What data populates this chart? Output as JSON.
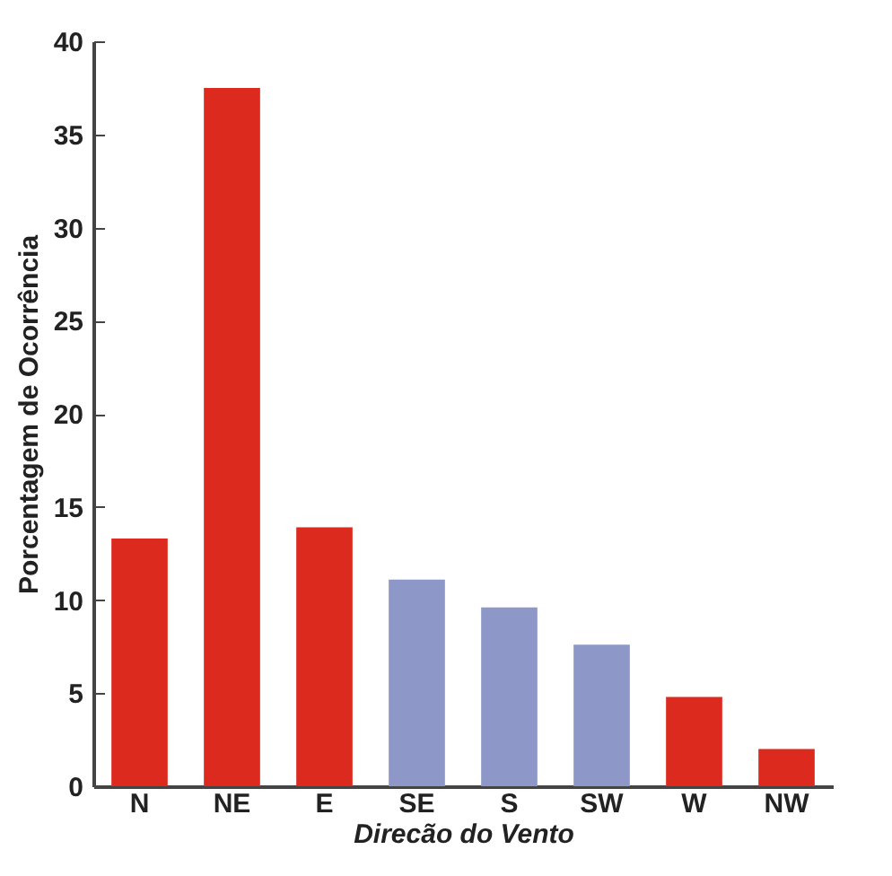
{
  "chart_data": {
    "type": "bar",
    "xlabel": "Direcão do Vento",
    "ylabel": "Porcentagem de Ocorrência",
    "categories": [
      "N",
      "NE",
      "E",
      "SE",
      "S",
      "SW",
      "W",
      "NW"
    ],
    "values": [
      13.3,
      37.5,
      13.9,
      11.1,
      9.6,
      7.6,
      4.8,
      2.0
    ],
    "colors": [
      "#dc2a1f",
      "#dc2a1f",
      "#dc2a1f",
      "#8e98c8",
      "#8e98c8",
      "#8e98c8",
      "#dc2a1f",
      "#dc2a1f"
    ],
    "ylim": [
      0,
      40
    ],
    "yticks": [
      0,
      5,
      10,
      15,
      20,
      25,
      30,
      35,
      40
    ],
    "grid": false
  }
}
